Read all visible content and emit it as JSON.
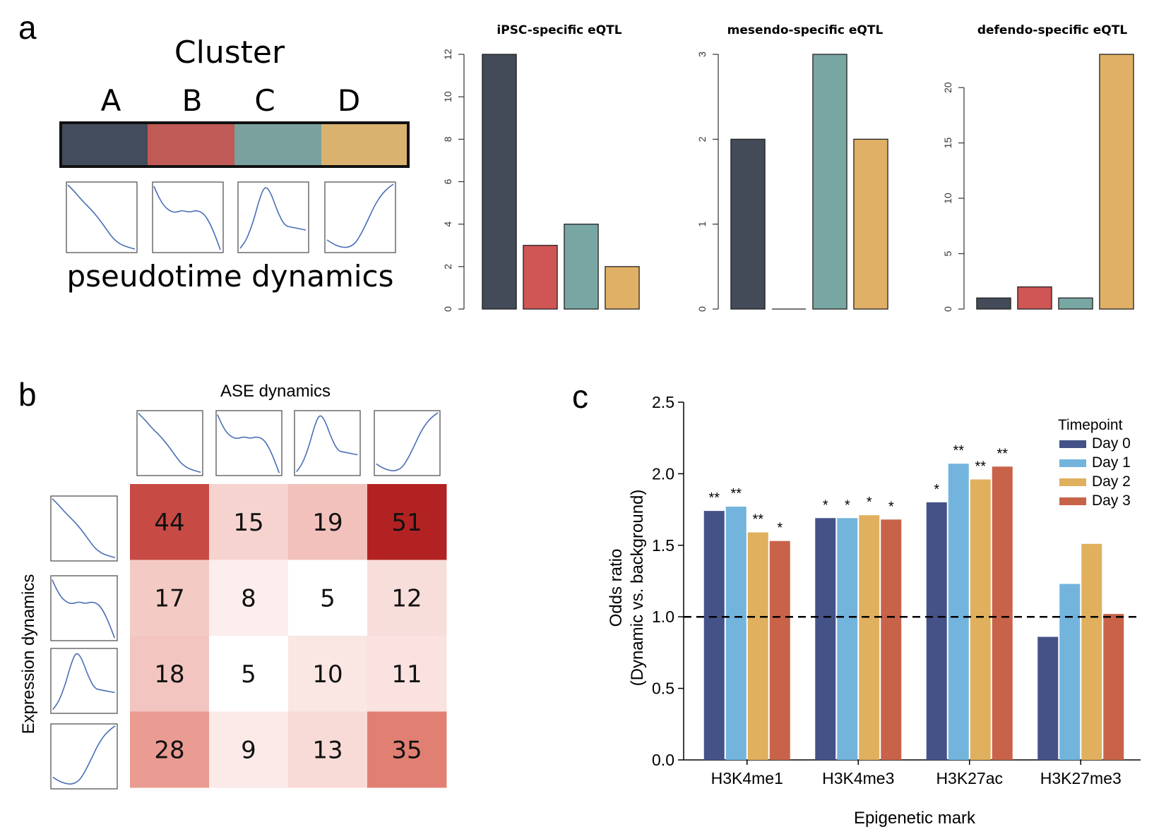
{
  "panels": {
    "a": {
      "letter": "a",
      "cluster_title": "Cluster",
      "cluster_labels": [
        "A",
        "B",
        "C",
        "D"
      ],
      "cluster_colors": [
        "#434c5c",
        "#c05a56",
        "#7aa19d",
        "#d9b26f"
      ],
      "dynamics_label": "pseudotime dynamics"
    },
    "b": {
      "letter": "b",
      "ase_label": "ASE dynamics",
      "expr_label": "Expression dynamics"
    },
    "c": {
      "letter": "c"
    }
  },
  "colors": {
    "bar_clusters": [
      "#434a58",
      "#d05555",
      "#78a6a3",
      "#e0b066"
    ],
    "timepoints": [
      "#445288",
      "#73b4dd",
      "#e0b05e",
      "#c8634a"
    ],
    "curve": "#4a6fb5"
  },
  "chart_data": [
    {
      "type": "bar",
      "title": "iPSC-specific eQTL",
      "categories": [
        "A",
        "B",
        "C",
        "D"
      ],
      "values": [
        12,
        3,
        4,
        2
      ],
      "ylim": [
        0,
        12
      ],
      "yticks": [
        0,
        2,
        4,
        6,
        8,
        10,
        12
      ],
      "xlabel": "",
      "ylabel": ""
    },
    {
      "type": "bar",
      "title": "mesendo-specific eQTL",
      "categories": [
        "A",
        "B",
        "C",
        "D"
      ],
      "values": [
        2,
        0,
        3,
        2
      ],
      "ylim": [
        0,
        3
      ],
      "yticks": [
        0,
        1,
        2,
        3
      ],
      "xlabel": "",
      "ylabel": ""
    },
    {
      "type": "bar",
      "title": "defendo-specific eQTL",
      "categories": [
        "A",
        "B",
        "C",
        "D"
      ],
      "values": [
        1,
        2,
        1,
        23
      ],
      "ylim": [
        0,
        23
      ],
      "yticks": [
        0,
        5,
        10,
        15,
        20
      ],
      "xlabel": "",
      "ylabel": ""
    },
    {
      "type": "heatmap",
      "xlabel": "ASE dynamics",
      "ylabel": "Expression dynamics",
      "rows": [
        "A",
        "B",
        "C",
        "D"
      ],
      "cols": [
        "A",
        "B",
        "C",
        "D"
      ],
      "values": [
        [
          44,
          15,
          19,
          51
        ],
        [
          17,
          8,
          5,
          12
        ],
        [
          18,
          5,
          10,
          11
        ],
        [
          28,
          9,
          13,
          35
        ]
      ],
      "color_range": [
        5,
        51
      ]
    },
    {
      "type": "bar",
      "xlabel": "Epigenetic mark",
      "ylabel": "Odds ratio",
      "ylabel_sub": "(Dynamic vs. background)",
      "categories": [
        "H3K4me1",
        "H3K4me3",
        "H3K27ac",
        "H3K27me3"
      ],
      "legend_title": "Timepoint",
      "legend_position": "top-right",
      "ylim": [
        0,
        2.5
      ],
      "yticks": [
        "0.0",
        "0.5",
        "1.0",
        "1.5",
        "2.0",
        "2.5"
      ],
      "reference_line": 1.0,
      "series": [
        {
          "name": "Day 0",
          "values": [
            1.74,
            1.69,
            1.8,
            0.86
          ],
          "stars": [
            "**",
            "*",
            "*",
            ""
          ]
        },
        {
          "name": "Day 1",
          "values": [
            1.77,
            1.69,
            2.07,
            1.23
          ],
          "stars": [
            "**",
            "*",
            "**",
            ""
          ]
        },
        {
          "name": "Day 2",
          "values": [
            1.59,
            1.71,
            1.96,
            1.51
          ],
          "stars": [
            "**",
            "*",
            "**",
            ""
          ]
        },
        {
          "name": "Day 3",
          "values": [
            1.53,
            1.68,
            2.05,
            1.02
          ],
          "stars": [
            "*",
            "*",
            "**",
            ""
          ]
        }
      ]
    }
  ]
}
